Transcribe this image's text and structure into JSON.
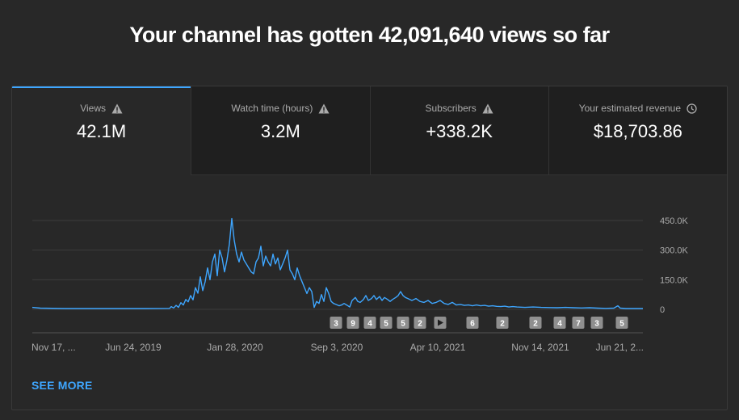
{
  "headline": "Your channel has gotten 42,091,640 views so far",
  "tabs": [
    {
      "label": "Views",
      "value": "42.1M",
      "icon": "warning-icon"
    },
    {
      "label": "Watch time (hours)",
      "value": "3.2M",
      "icon": "warning-icon"
    },
    {
      "label": "Subscribers",
      "value": "+338.2K",
      "icon": "warning-icon"
    },
    {
      "label": "Your estimated revenue",
      "value": "$18,703.86",
      "icon": "clock-icon"
    }
  ],
  "colors": {
    "accent": "#3ea6ff",
    "line": "#3ea6ff",
    "marker": "#8f8f8f"
  },
  "see_more": "SEE MORE",
  "chart_data": {
    "type": "line",
    "series": [
      {
        "values": [
          [
            0,
            10
          ],
          [
            10,
            6
          ],
          [
            40,
            4
          ],
          [
            80,
            4
          ],
          [
            140,
            4
          ],
          [
            170,
            5
          ],
          [
            172,
            14
          ],
          [
            175,
            7
          ],
          [
            178,
            20
          ],
          [
            181,
            10
          ],
          [
            184,
            34
          ],
          [
            187,
            22
          ],
          [
            190,
            50
          ],
          [
            193,
            38
          ],
          [
            196,
            70
          ],
          [
            199,
            48
          ],
          [
            202,
            110
          ],
          [
            205,
            82
          ],
          [
            208,
            165
          ],
          [
            211,
            95
          ],
          [
            214,
            140
          ],
          [
            217,
            210
          ],
          [
            220,
            150
          ],
          [
            223,
            240
          ],
          [
            226,
            280
          ],
          [
            229,
            170
          ],
          [
            232,
            300
          ],
          [
            235,
            260
          ],
          [
            238,
            190
          ],
          [
            241,
            250
          ],
          [
            244,
            330
          ],
          [
            247,
            460
          ],
          [
            250,
            350
          ],
          [
            253,
            280
          ],
          [
            256,
            240
          ],
          [
            259,
            290
          ],
          [
            262,
            250
          ],
          [
            265,
            230
          ],
          [
            268,
            210
          ],
          [
            271,
            190
          ],
          [
            274,
            180
          ],
          [
            277,
            240
          ],
          [
            280,
            260
          ],
          [
            283,
            320
          ],
          [
            286,
            220
          ],
          [
            289,
            270
          ],
          [
            292,
            240
          ],
          [
            295,
            220
          ],
          [
            298,
            280
          ],
          [
            301,
            230
          ],
          [
            304,
            260
          ],
          [
            307,
            200
          ],
          [
            310,
            230
          ],
          [
            313,
            260
          ],
          [
            316,
            300
          ],
          [
            319,
            200
          ],
          [
            322,
            180
          ],
          [
            325,
            150
          ],
          [
            328,
            210
          ],
          [
            331,
            170
          ],
          [
            334,
            140
          ],
          [
            337,
            110
          ],
          [
            340,
            80
          ],
          [
            343,
            110
          ],
          [
            346,
            90
          ],
          [
            349,
            10
          ],
          [
            352,
            40
          ],
          [
            355,
            30
          ],
          [
            358,
            75
          ],
          [
            361,
            40
          ],
          [
            364,
            110
          ],
          [
            367,
            80
          ],
          [
            370,
            40
          ],
          [
            373,
            30
          ],
          [
            376,
            25
          ],
          [
            380,
            18
          ],
          [
            383,
            22
          ],
          [
            386,
            30
          ],
          [
            390,
            20
          ],
          [
            393,
            12
          ],
          [
            396,
            45
          ],
          [
            400,
            60
          ],
          [
            403,
            40
          ],
          [
            406,
            35
          ],
          [
            410,
            50
          ],
          [
            413,
            70
          ],
          [
            416,
            45
          ],
          [
            420,
            55
          ],
          [
            423,
            70
          ],
          [
            426,
            50
          ],
          [
            430,
            65
          ],
          [
            433,
            45
          ],
          [
            436,
            60
          ],
          [
            440,
            50
          ],
          [
            443,
            40
          ],
          [
            446,
            50
          ],
          [
            450,
            60
          ],
          [
            453,
            70
          ],
          [
            456,
            90
          ],
          [
            459,
            70
          ],
          [
            462,
            60
          ],
          [
            465,
            55
          ],
          [
            470,
            45
          ],
          [
            475,
            55
          ],
          [
            480,
            40
          ],
          [
            485,
            35
          ],
          [
            490,
            45
          ],
          [
            495,
            30
          ],
          [
            500,
            35
          ],
          [
            505,
            45
          ],
          [
            510,
            30
          ],
          [
            515,
            25
          ],
          [
            520,
            35
          ],
          [
            525,
            22
          ],
          [
            530,
            25
          ],
          [
            535,
            20
          ],
          [
            540,
            22
          ],
          [
            545,
            18
          ],
          [
            550,
            22
          ],
          [
            555,
            18
          ],
          [
            560,
            20
          ],
          [
            565,
            16
          ],
          [
            570,
            18
          ],
          [
            575,
            15
          ],
          [
            580,
            14
          ],
          [
            585,
            16
          ],
          [
            590,
            12
          ],
          [
            595,
            14
          ],
          [
            600,
            12
          ],
          [
            610,
            10
          ],
          [
            620,
            12
          ],
          [
            630,
            10
          ],
          [
            640,
            9
          ],
          [
            650,
            8
          ],
          [
            660,
            10
          ],
          [
            670,
            8
          ],
          [
            680,
            7
          ],
          [
            690,
            8
          ],
          [
            700,
            6
          ],
          [
            710,
            5
          ],
          [
            720,
            6
          ],
          [
            725,
            18
          ],
          [
            728,
            6
          ],
          [
            735,
            4
          ],
          [
            756,
            4
          ]
        ]
      }
    ],
    "x_ticks": [
      "Nov 17, ...",
      "Jun 24, 2019",
      "Jan 28, 2020",
      "Sep 3, 2020",
      "Apr 10, 2021",
      "Nov 14, 2021",
      "Jun 21, 2..."
    ],
    "y_ticks": [
      "450.0K",
      "300.0K",
      "150.0K",
      "0"
    ],
    "ylim": [
      0,
      450000
    ],
    "markers": [
      "3",
      "9",
      "4",
      "5",
      "5",
      "2",
      "play",
      "6",
      "2",
      "2",
      "4",
      "7",
      "3",
      "5"
    ]
  }
}
